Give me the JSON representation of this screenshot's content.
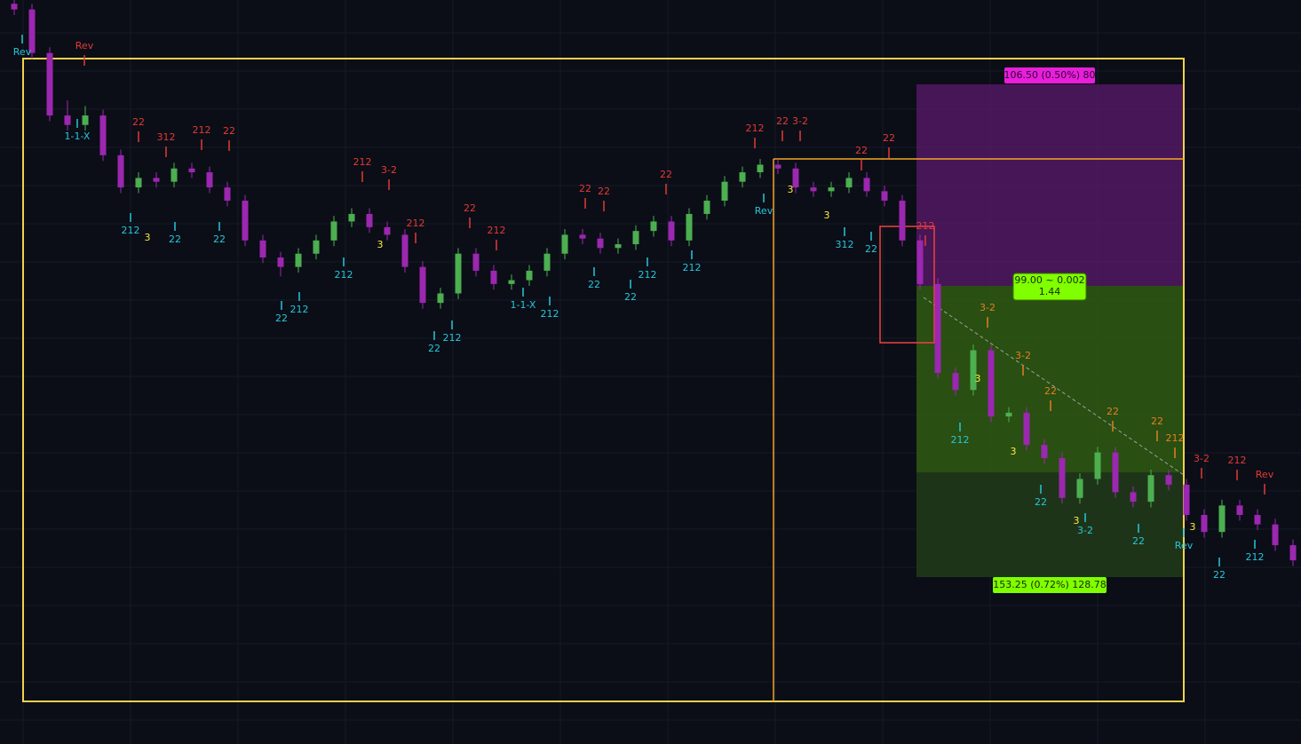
{
  "chart_data": {
    "type": "candlestick",
    "ylim": [
      21058,
      21451
    ],
    "up_color": "#4caf50",
    "down_color": "#9c27b0",
    "candles": [
      [
        21449,
        21451,
        21443,
        21446
      ],
      [
        21446,
        21449,
        21420,
        21423
      ],
      [
        21423,
        21426,
        21387,
        21390
      ],
      [
        21390,
        21398,
        21382,
        21385
      ],
      [
        21385,
        21395,
        21382,
        21390
      ],
      [
        21390,
        21393,
        21366,
        21369
      ],
      [
        21369,
        21372,
        21349,
        21352
      ],
      [
        21352,
        21360,
        21349,
        21357
      ],
      [
        21357,
        21360,
        21352,
        21355
      ],
      [
        21355,
        21365,
        21352,
        21362
      ],
      [
        21362,
        21365,
        21357,
        21360
      ],
      [
        21360,
        21363,
        21349,
        21352
      ],
      [
        21352,
        21355,
        21342,
        21345
      ],
      [
        21345,
        21348,
        21321,
        21324
      ],
      [
        21324,
        21327,
        21312,
        21315
      ],
      [
        21315,
        21318,
        21305,
        21310
      ],
      [
        21310,
        21320,
        21307,
        21317
      ],
      [
        21317,
        21327,
        21314,
        21324
      ],
      [
        21324,
        21337,
        21321,
        21334
      ],
      [
        21334,
        21341,
        21331,
        21338
      ],
      [
        21338,
        21341,
        21328,
        21331
      ],
      [
        21331,
        21334,
        21324,
        21327
      ],
      [
        21327,
        21330,
        21307,
        21310
      ],
      [
        21310,
        21313,
        21288,
        21291
      ],
      [
        21291,
        21299,
        21288,
        21296
      ],
      [
        21296,
        21320,
        21293,
        21317
      ],
      [
        21317,
        21320,
        21305,
        21308
      ],
      [
        21308,
        21311,
        21298,
        21301
      ],
      [
        21301,
        21306,
        21298,
        21303
      ],
      [
        21303,
        21311,
        21300,
        21308
      ],
      [
        21308,
        21320,
        21305,
        21317
      ],
      [
        21317,
        21330,
        21314,
        21327
      ],
      [
        21327,
        21330,
        21322,
        21325
      ],
      [
        21325,
        21328,
        21317,
        21320
      ],
      [
        21320,
        21325,
        21317,
        21322
      ],
      [
        21322,
        21332,
        21319,
        21329
      ],
      [
        21329,
        21337,
        21326,
        21334
      ],
      [
        21334,
        21337,
        21321,
        21324
      ],
      [
        21324,
        21341,
        21321,
        21338
      ],
      [
        21338,
        21348,
        21335,
        21345
      ],
      [
        21345,
        21358,
        21342,
        21355
      ],
      [
        21355,
        21363,
        21352,
        21360
      ],
      [
        21360,
        21367,
        21357,
        21364
      ],
      [
        21364,
        21367,
        21359,
        21362
      ],
      [
        21362,
        21365,
        21349,
        21352
      ],
      [
        21352,
        21355,
        21347,
        21350
      ],
      [
        21350,
        21355,
        21347,
        21352
      ],
      [
        21352,
        21360,
        21349,
        21357
      ],
      [
        21357,
        21360,
        21347,
        21350
      ],
      [
        21350,
        21353,
        21342,
        21345
      ],
      [
        21345,
        21348,
        21321,
        21324
      ],
      [
        21324,
        21327,
        21298,
        21301
      ],
      [
        21301,
        21304,
        21251,
        21254
      ],
      [
        21254,
        21257,
        21242,
        21245
      ],
      [
        21245,
        21269,
        21242,
        21266
      ],
      [
        21266,
        21269,
        21228,
        21231
      ],
      [
        21231,
        21236,
        21228,
        21233
      ],
      [
        21233,
        21236,
        21213,
        21216
      ],
      [
        21216,
        21219,
        21206,
        21209
      ],
      [
        21209,
        21212,
        21185,
        21188
      ],
      [
        21188,
        21201,
        21185,
        21198
      ],
      [
        21198,
        21215,
        21195,
        21212
      ],
      [
        21212,
        21215,
        21188,
        21191
      ],
      [
        21191,
        21194,
        21183,
        21186
      ],
      [
        21186,
        21203,
        21183,
        21200
      ],
      [
        21200,
        21203,
        21192,
        21195
      ],
      [
        21195,
        21198,
        21176,
        21179
      ],
      [
        21179,
        21182,
        21167,
        21170
      ],
      [
        21170,
        21187,
        21167,
        21184
      ],
      [
        21184,
        21187,
        21176,
        21179
      ],
      [
        21179,
        21182,
        21171,
        21174
      ],
      [
        21174,
        21177,
        21160,
        21163
      ],
      [
        21163,
        21166,
        21152,
        21155
      ]
    ]
  },
  "signals_top": [
    "Rev",
    "22",
    "312",
    "212",
    "22",
    "212",
    "3-2",
    "212",
    "22",
    "212",
    "22",
    "22",
    "22",
    "212",
    "22",
    "3-2",
    "22",
    "22",
    "212",
    "3-2",
    "212",
    "Rev"
  ],
  "signals_projected": [
    "3-2",
    "3-2",
    "22",
    "22",
    "22",
    "212"
  ],
  "signals_bottom": [
    "Rev",
    "1-1-X",
    "212",
    "22",
    "22",
    "212",
    "212",
    "22",
    "22",
    "212",
    "1-1-X",
    "212",
    "22",
    "212",
    "22",
    "212",
    "Rev",
    "312",
    "22",
    "212",
    "22",
    "3-2",
    "22",
    "Rev",
    "22",
    "212"
  ],
  "bar_counts": [
    "3",
    "3",
    "3",
    "3",
    "3",
    "3",
    "3",
    "3"
  ],
  "position": {
    "target_label": "106.50 (0.50%) 80",
    "entry_label": [
      "99.00 ~ 0.002",
      "1.44"
    ],
    "stop_label": "153.25 (0.72%) 128.78"
  }
}
